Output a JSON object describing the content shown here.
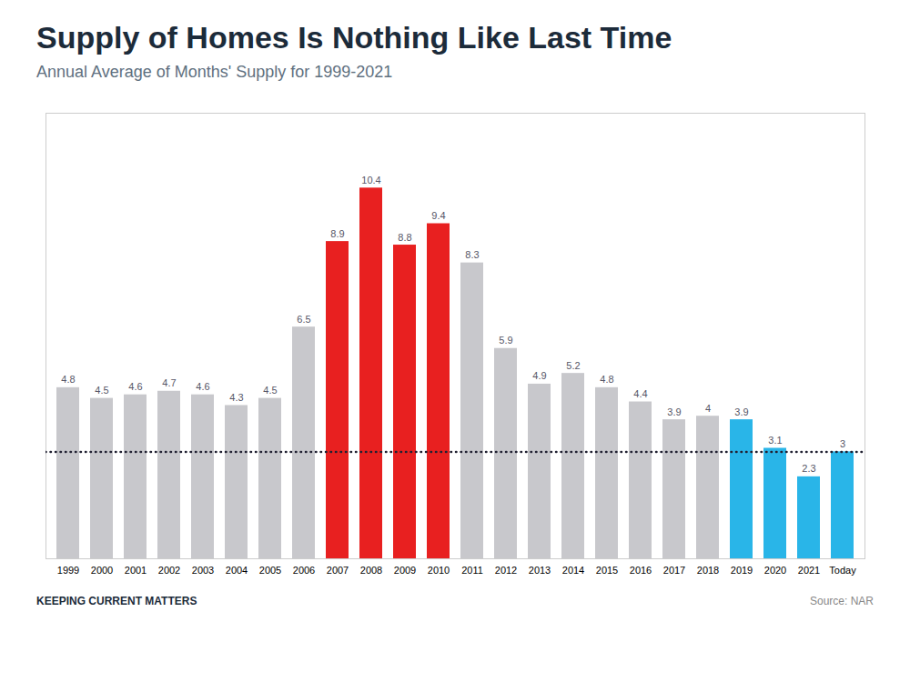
{
  "chart_data": {
    "type": "bar",
    "title": "Supply of Homes Is Nothing Like Last Time",
    "subtitle": "Annual Average of Months' Supply for 1999-2021",
    "categories": [
      "1999",
      "2000",
      "2001",
      "2002",
      "2003",
      "2004",
      "2005",
      "2006",
      "2007",
      "2008",
      "2009",
      "2010",
      "2011",
      "2012",
      "2013",
      "2014",
      "2015",
      "2016",
      "2017",
      "2018",
      "2019",
      "2020",
      "2021",
      "Today"
    ],
    "values": [
      4.8,
      4.5,
      4.6,
      4.7,
      4.6,
      4.3,
      4.5,
      6.5,
      8.9,
      10.4,
      8.8,
      9.4,
      8.3,
      5.9,
      4.9,
      5.2,
      4.8,
      4.4,
      3.9,
      4.0,
      3.9,
      3.1,
      2.3,
      3.0
    ],
    "colors": [
      "#c8c8cc",
      "#c8c8cc",
      "#c8c8cc",
      "#c8c8cc",
      "#c8c8cc",
      "#c8c8cc",
      "#c8c8cc",
      "#c8c8cc",
      "#e82020",
      "#e82020",
      "#e82020",
      "#e82020",
      "#c8c8cc",
      "#c8c8cc",
      "#c8c8cc",
      "#c8c8cc",
      "#c8c8cc",
      "#c8c8cc",
      "#c8c8cc",
      "#c8c8cc",
      "#29b5e8",
      "#29b5e8",
      "#29b5e8",
      "#29b5e8"
    ],
    "ylim": [
      0,
      12.5
    ],
    "yticks": [],
    "tick_labels": "x",
    "grid": false,
    "data_labels": true,
    "reference_line": {
      "value": 3.0,
      "line_style": "dotted"
    },
    "annotations": [
      "KEEPING CURRENT MATTERS"
    ],
    "source": "Source: NAR"
  }
}
